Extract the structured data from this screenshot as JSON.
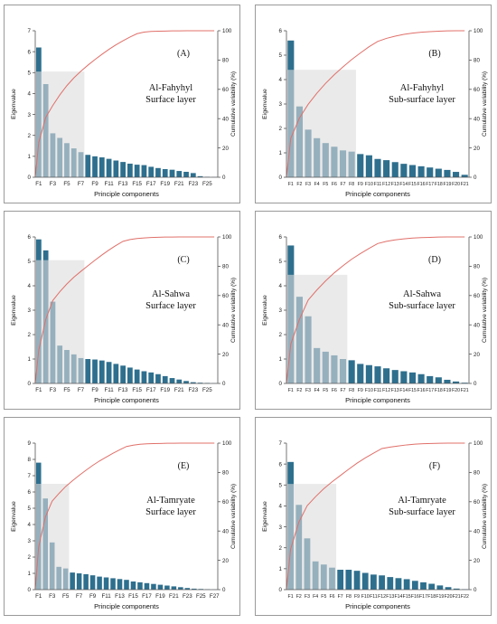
{
  "colors": {
    "bar": "#2e6f8e",
    "shade": "#dcdcdc",
    "curve": "#e0706a",
    "axis": "#555555"
  },
  "chart_data": [
    {
      "type": "bar",
      "panel": "(A)",
      "site": "Al-Fahyhyl",
      "layer": "Surface layer",
      "xlabel": "Principle components",
      "ylabel": "Eigenvalue",
      "y2label": "Cumulative variability (%)",
      "ylim": [
        0,
        7
      ],
      "y2lim": [
        0,
        100
      ],
      "yticks": [
        "0",
        "1",
        "2",
        "3",
        "4",
        "5",
        "6",
        "7"
      ],
      "y2ticks": [
        "0",
        "20",
        "40",
        "60",
        "80",
        "100"
      ],
      "categories": [
        "F1",
        "F2",
        "F3",
        "F4",
        "F5",
        "F6",
        "F7",
        "F8",
        "F9",
        "F10",
        "F11",
        "F12",
        "F13",
        "F14",
        "F15",
        "F16",
        "F17",
        "F18",
        "F19",
        "F20",
        "F21",
        "F22",
        "F23",
        "F24",
        "F25",
        "F26"
      ],
      "xticks": [
        "F1",
        "F3",
        "F5",
        "F7",
        "F9",
        "F11",
        "F13",
        "F15",
        "F17",
        "F19",
        "F21",
        "F23",
        "F25"
      ],
      "values": [
        6.2,
        4.45,
        2.1,
        1.88,
        1.63,
        1.38,
        1.2,
        1.07,
        1.0,
        0.95,
        0.88,
        0.8,
        0.73,
        0.65,
        0.6,
        0.58,
        0.5,
        0.44,
        0.39,
        0.36,
        0.3,
        0.26,
        0.2,
        0.05,
        0.02,
        0.01
      ],
      "cumulative": [
        23.8,
        40.9,
        49,
        56.2,
        62.5,
        67.8,
        72.4,
        76.5,
        80.3,
        83.9,
        87.3,
        90.4,
        93.2,
        95.7,
        98,
        99.1,
        99.5,
        99.7,
        99.8,
        99.9,
        99.9,
        100,
        100,
        100,
        100,
        100
      ],
      "shaded_components": 7,
      "shade_level": 5.05
    },
    {
      "type": "bar",
      "panel": "(B)",
      "site": "Al-Fahyhyl",
      "layer": "Sub-surface layer",
      "xlabel": "Principle components",
      "ylabel": "Eigenvalue",
      "y2label": "Cumulative variability (%)",
      "ylim": [
        0,
        6
      ],
      "y2lim": [
        0,
        100
      ],
      "yticks": [
        "0",
        "1",
        "2",
        "3",
        "4",
        "5",
        "6"
      ],
      "y2ticks": [
        "0",
        "20",
        "40",
        "60",
        "80",
        "100"
      ],
      "categories": [
        "F1",
        "F2",
        "F3",
        "F4",
        "F5",
        "F6",
        "F7",
        "F8",
        "F9",
        "F10",
        "F11",
        "F12",
        "F13",
        "F14",
        "F15",
        "F16",
        "F17",
        "F18",
        "F19",
        "F20",
        "F21"
      ],
      "xticks": [
        "F1",
        "F2",
        "F3",
        "F4",
        "F5",
        "F6",
        "F7",
        "F8",
        "F9",
        "F10",
        "F11",
        "F12",
        "F13",
        "F14",
        "F15",
        "F16",
        "F17",
        "F18",
        "F19",
        "F20",
        "F21"
      ],
      "values": [
        5.6,
        2.9,
        1.95,
        1.6,
        1.4,
        1.25,
        1.1,
        1.05,
        0.95,
        0.9,
        0.75,
        0.7,
        0.62,
        0.55,
        0.5,
        0.45,
        0.4,
        0.35,
        0.3,
        0.22,
        0.1
      ],
      "cumulative": [
        26.7,
        40.5,
        49.8,
        57.4,
        64.1,
        70,
        75.3,
        80.3,
        84.8,
        89.1,
        92.7,
        94.8,
        96.3,
        97.5,
        98.4,
        99,
        99.4,
        99.7,
        99.9,
        100,
        100
      ],
      "shaded_components": 8,
      "shade_level": 4.4
    },
    {
      "type": "bar",
      "panel": "(C)",
      "site": "Al-Sahwa",
      "layer": "Surface layer",
      "xlabel": "Principle components",
      "ylabel": "Eigenvalue",
      "y2label": "Cumulative variability (%)",
      "ylim": [
        0,
        6
      ],
      "y2lim": [
        0,
        100
      ],
      "yticks": [
        "0",
        "1",
        "2",
        "3",
        "4",
        "5",
        "6"
      ],
      "y2ticks": [
        "0",
        "20",
        "40",
        "60",
        "80",
        "100"
      ],
      "categories": [
        "F1",
        "F2",
        "F3",
        "F4",
        "F5",
        "F6",
        "F7",
        "F8",
        "F9",
        "F10",
        "F11",
        "F12",
        "F13",
        "F14",
        "F15",
        "F16",
        "F17",
        "F18",
        "F19",
        "F20",
        "F21",
        "F22",
        "F23",
        "F24",
        "F25",
        "F26"
      ],
      "xticks": [
        "F1",
        "F3",
        "F5",
        "F7",
        "F9",
        "F11",
        "F13",
        "F15",
        "F17",
        "F19",
        "F21",
        "F23",
        "F25"
      ],
      "values": [
        5.9,
        5.45,
        3.35,
        1.55,
        1.37,
        1.19,
        1.04,
        1.0,
        0.98,
        0.94,
        0.88,
        0.8,
        0.73,
        0.65,
        0.57,
        0.5,
        0.45,
        0.38,
        0.3,
        0.22,
        0.16,
        0.1,
        0.05,
        0.03,
        0.02,
        0.01
      ],
      "cumulative": [
        22.7,
        43.7,
        56.6,
        62.6,
        67.9,
        72.5,
        76.5,
        80.3,
        84.1,
        87.7,
        91.1,
        94.2,
        97,
        98.2,
        98.9,
        99.3,
        99.6,
        99.8,
        99.9,
        99.9,
        100,
        100,
        100,
        100,
        100,
        100
      ],
      "shaded_components": 7,
      "shade_level": 5.05
    },
    {
      "type": "bar",
      "panel": "(D)",
      "site": "Al-Sahwa",
      "layer": "Sub-surface layer",
      "xlabel": "Principle components",
      "ylabel": "Eigenvalue",
      "y2label": "Cumulative variability (%)",
      "ylim": [
        0,
        6
      ],
      "y2lim": [
        0,
        100
      ],
      "yticks": [
        "0",
        "1",
        "2",
        "3",
        "4",
        "5",
        "6"
      ],
      "y2ticks": [
        "0",
        "20",
        "40",
        "60",
        "80",
        "100"
      ],
      "categories": [
        "F1",
        "F2",
        "F3",
        "F4",
        "F5",
        "F6",
        "F7",
        "F8",
        "F9",
        "F10",
        "F11",
        "F12",
        "F13",
        "F14",
        "F15",
        "F16",
        "F17",
        "F18",
        "F19",
        "F20",
        "F21"
      ],
      "xticks": [
        "F1",
        "F2",
        "F3",
        "F4",
        "F5",
        "F6",
        "F7",
        "F8",
        "F9",
        "F10",
        "F11",
        "F12",
        "F13",
        "F14",
        "F15",
        "F16",
        "F17",
        "F18",
        "F19",
        "F20",
        "F21"
      ],
      "values": [
        5.65,
        3.55,
        2.75,
        1.45,
        1.3,
        1.15,
        1.0,
        0.95,
        0.8,
        0.75,
        0.7,
        0.62,
        0.55,
        0.5,
        0.45,
        0.38,
        0.3,
        0.25,
        0.15,
        0.08,
        0.03
      ],
      "cumulative": [
        26.9,
        43.8,
        56.9,
        63.8,
        70,
        75.5,
        80.3,
        84.8,
        88.6,
        92.2,
        95.5,
        97,
        98,
        98.7,
        99.2,
        99.5,
        99.7,
        99.9,
        100,
        100,
        100
      ],
      "shaded_components": 7,
      "shade_level": 4.45
    },
    {
      "type": "bar",
      "panel": "(E)",
      "site": "Al-Tamryate",
      "layer": "Surface layer",
      "xlabel": "Principle components",
      "ylabel": "Eigenvalue",
      "y2label": "Cumulative variability (%)",
      "ylim": [
        0,
        9
      ],
      "y2lim": [
        0,
        100
      ],
      "yticks": [
        "0",
        "1",
        "2",
        "3",
        "4",
        "5",
        "6",
        "7",
        "8",
        "9"
      ],
      "y2ticks": [
        "0",
        "20",
        "40",
        "60",
        "80",
        "100"
      ],
      "categories": [
        "F1",
        "F2",
        "F3",
        "F4",
        "F5",
        "F6",
        "F7",
        "F8",
        "F9",
        "F10",
        "F11",
        "F12",
        "F13",
        "F14",
        "F15",
        "F16",
        "F17",
        "F18",
        "F19",
        "F20",
        "F21",
        "F22",
        "F23",
        "F24",
        "F25",
        "F26",
        "F27"
      ],
      "xticks": [
        "F1",
        "F3",
        "F5",
        "F7",
        "F9",
        "F11",
        "F13",
        "F15",
        "F17",
        "F19",
        "F21",
        "F23",
        "F25",
        "F27"
      ],
      "values": [
        7.8,
        5.6,
        2.9,
        1.4,
        1.3,
        1.05,
        1.0,
        0.95,
        0.88,
        0.8,
        0.75,
        0.7,
        0.65,
        0.6,
        0.5,
        0.45,
        0.4,
        0.35,
        0.3,
        0.25,
        0.2,
        0.15,
        0.1,
        0.06,
        0.04,
        0.02,
        0.01
      ],
      "cumulative": [
        28.9,
        49.6,
        60.4,
        65.6,
        70.4,
        74.3,
        78,
        81.5,
        84.8,
        87.8,
        90.5,
        93.1,
        95.5,
        97.7,
        98.6,
        99.2,
        99.5,
        99.7,
        99.8,
        99.9,
        99.9,
        100,
        100,
        100,
        100,
        100,
        100
      ],
      "shaded_components": 5,
      "shade_level": 6.5
    },
    {
      "type": "bar",
      "panel": "(F)",
      "site": "Al-Tamryate",
      "layer": "Sub-surface layer",
      "xlabel": "Principle components",
      "ylabel": "Eigenvalue",
      "y2label": "Cumulative variability (%)",
      "ylim": [
        0,
        7
      ],
      "y2lim": [
        0,
        100
      ],
      "yticks": [
        "0",
        "1",
        "2",
        "3",
        "4",
        "5",
        "6",
        "7"
      ],
      "y2ticks": [
        "0",
        "20",
        "40",
        "60",
        "80",
        "100"
      ],
      "categories": [
        "F1",
        "F2",
        "F3",
        "F4",
        "F5",
        "F6",
        "F7",
        "F8",
        "F9",
        "F10",
        "F11",
        "F12",
        "F13",
        "F14",
        "F15",
        "F16",
        "F17",
        "F18",
        "F19",
        "F20",
        "F21",
        "F22"
      ],
      "xticks": [
        "F1",
        "F2",
        "F3",
        "F4",
        "F5",
        "F6",
        "F7",
        "F8",
        "F9",
        "F10",
        "F11",
        "F12",
        "F13",
        "F14",
        "F15",
        "F16",
        "F17",
        "F18",
        "F19",
        "F20",
        "F21",
        "F22"
      ],
      "values": [
        6.1,
        4.05,
        2.45,
        1.35,
        1.2,
        1.05,
        0.95,
        0.95,
        0.9,
        0.8,
        0.72,
        0.68,
        0.6,
        0.55,
        0.5,
        0.42,
        0.35,
        0.28,
        0.2,
        0.12,
        0.05,
        0.02
      ],
      "cumulative": [
        27.7,
        46.1,
        57.3,
        63.4,
        68.9,
        73.6,
        77.9,
        82.2,
        86.3,
        89.9,
        93.2,
        96.3,
        97.3,
        98.1,
        98.8,
        99.3,
        99.6,
        99.8,
        99.9,
        100,
        100,
        100
      ],
      "shaded_components": 6,
      "shade_level": 5.05
    }
  ]
}
